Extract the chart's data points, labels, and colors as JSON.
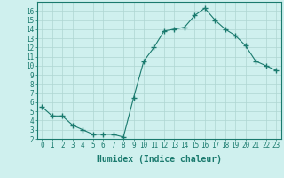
{
  "x": [
    0,
    1,
    2,
    3,
    4,
    5,
    6,
    7,
    8,
    9,
    10,
    11,
    12,
    13,
    14,
    15,
    16,
    17,
    18,
    19,
    20,
    21,
    22,
    23
  ],
  "y": [
    5.5,
    4.5,
    4.5,
    3.5,
    3.0,
    2.5,
    2.5,
    2.5,
    2.2,
    6.5,
    10.5,
    12.0,
    13.8,
    14.0,
    14.2,
    15.5,
    16.3,
    15.0,
    14.0,
    13.3,
    12.2,
    10.5,
    10.0,
    9.5
  ],
  "line_color": "#1a7a6e",
  "marker": "+",
  "marker_size": 4,
  "bg_color": "#cff0ee",
  "grid_color": "#aed6d2",
  "tick_color": "#1a7a6e",
  "xlabel": "Humidex (Indice chaleur)",
  "ylim": [
    2,
    17
  ],
  "xlim": [
    -0.5,
    23.5
  ],
  "yticks": [
    2,
    3,
    4,
    5,
    6,
    7,
    8,
    9,
    10,
    11,
    12,
    13,
    14,
    15,
    16
  ],
  "xticks": [
    0,
    1,
    2,
    3,
    4,
    5,
    6,
    7,
    8,
    9,
    10,
    11,
    12,
    13,
    14,
    15,
    16,
    17,
    18,
    19,
    20,
    21,
    22,
    23
  ],
  "font_size": 5.5,
  "label_font_size": 7
}
